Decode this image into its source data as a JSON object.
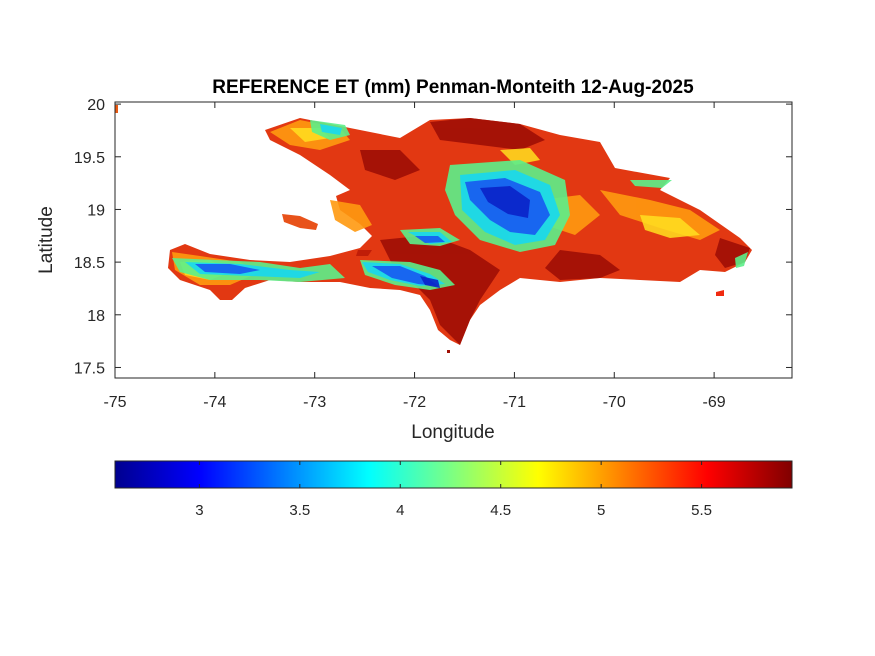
{
  "chart_data": {
    "type": "heatmap",
    "title": "REFERENCE ET (mm) Penman-Monteith 12-Aug-2025",
    "xlabel": "Longitude",
    "ylabel": "Latitude",
    "xlim": [
      -75,
      -68.22
    ],
    "ylim": [
      17.4,
      20.02
    ],
    "x_ticks": [
      "-75",
      "-74",
      "-73",
      "-72",
      "-71",
      "-70",
      "-69"
    ],
    "y_ticks": [
      "17.5",
      "18",
      "18.5",
      "19",
      "19.5",
      "20"
    ],
    "x_tick_values": [
      -75,
      -74,
      -73,
      -72,
      -71,
      -70,
      -69
    ],
    "y_tick_values": [
      17.5,
      18,
      18.5,
      19,
      19.5,
      20
    ],
    "colorbar": {
      "colormap": "jet",
      "range": [
        2.58,
        5.95
      ],
      "ticks": [
        "3",
        "3.5",
        "4",
        "4.5",
        "5",
        "5.5"
      ],
      "tick_values": [
        3,
        3.5,
        4,
        4.5,
        5,
        5.5
      ]
    },
    "grid": false,
    "region_value_estimates": [
      {
        "lon": -71.2,
        "lat": 19.0,
        "value": 3.2
      },
      {
        "lon": -71.0,
        "lat": 19.2,
        "value": 3.4
      },
      {
        "lon": -72.3,
        "lat": 18.35,
        "value": 3.5
      },
      {
        "lon": -73.8,
        "lat": 18.45,
        "value": 3.7
      },
      {
        "lon": -70.5,
        "lat": 18.9,
        "value": 5.1
      },
      {
        "lon": -69.5,
        "lat": 18.7,
        "value": 5.4
      },
      {
        "lon": -71.8,
        "lat": 18.0,
        "value": 5.8
      },
      {
        "lon": -72.5,
        "lat": 19.5,
        "value": 5.6
      }
    ]
  }
}
